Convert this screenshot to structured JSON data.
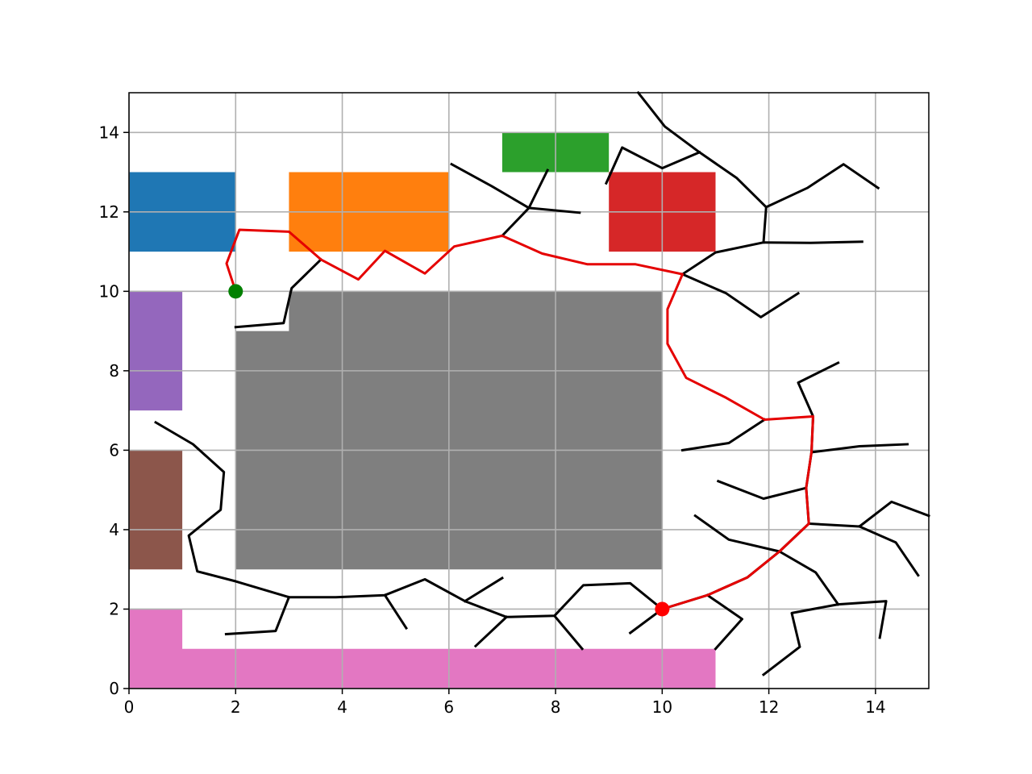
{
  "chart_data": {
    "type": "scatter",
    "title": "",
    "xlabel": "",
    "ylabel": "",
    "xlim": [
      0,
      15
    ],
    "ylim": [
      0,
      15
    ],
    "grid": true,
    "xticks": [
      0,
      2,
      4,
      6,
      8,
      10,
      12,
      14
    ],
    "yticks": [
      0,
      2,
      4,
      6,
      8,
      10,
      12,
      14
    ],
    "xtick_labels": [
      "0",
      "2",
      "4",
      "6",
      "8",
      "10",
      "12",
      "14"
    ],
    "ytick_labels": [
      "0",
      "2",
      "4",
      "6",
      "8",
      "10",
      "12",
      "14"
    ],
    "obstacles": [
      {
        "id": "blue",
        "color": "#1f77b4",
        "points": [
          [
            0,
            11
          ],
          [
            2,
            11
          ],
          [
            2,
            13
          ],
          [
            0,
            13
          ]
        ]
      },
      {
        "id": "orange",
        "color": "#ff7f0e",
        "points": [
          [
            3,
            11
          ],
          [
            6,
            11
          ],
          [
            6,
            13
          ],
          [
            3,
            13
          ]
        ]
      },
      {
        "id": "green",
        "color": "#2ca02c",
        "points": [
          [
            7,
            13
          ],
          [
            9,
            13
          ],
          [
            9,
            14
          ],
          [
            7,
            14
          ]
        ]
      },
      {
        "id": "red",
        "color": "#d62728",
        "points": [
          [
            9,
            11
          ],
          [
            11,
            11
          ],
          [
            11,
            13
          ],
          [
            9,
            13
          ]
        ]
      },
      {
        "id": "purple",
        "color": "#9467bd",
        "points": [
          [
            0,
            7
          ],
          [
            1,
            7
          ],
          [
            1,
            10
          ],
          [
            0,
            10
          ]
        ]
      },
      {
        "id": "brown",
        "color": "#8c564b",
        "points": [
          [
            0,
            3
          ],
          [
            1,
            3
          ],
          [
            1,
            6
          ],
          [
            0,
            6
          ]
        ]
      },
      {
        "id": "pink",
        "color": "#e377c2",
        "points": [
          [
            0,
            0
          ],
          [
            11,
            0
          ],
          [
            11,
            1
          ],
          [
            1,
            1
          ],
          [
            1,
            2
          ],
          [
            0,
            2
          ]
        ]
      },
      {
        "id": "gray",
        "color": "#7f7f7f",
        "points": [
          [
            2,
            3
          ],
          [
            10,
            3
          ],
          [
            10,
            10
          ],
          [
            3,
            10
          ],
          [
            3,
            9
          ],
          [
            2,
            9
          ]
        ]
      }
    ],
    "tree_color": "#000000",
    "tree_edges": [
      [
        [
          0.5,
          6.7
        ],
        [
          1.2,
          6.15
        ],
        [
          1.78,
          5.45
        ],
        [
          1.72,
          4.5
        ],
        [
          1.12,
          3.85
        ],
        [
          1.28,
          2.95
        ],
        [
          2.0,
          2.7
        ],
        [
          3.0,
          2.3
        ],
        [
          3.88,
          2.3
        ],
        [
          4.8,
          2.35
        ],
        [
          5.55,
          2.75
        ],
        [
          6.3,
          2.2
        ],
        [
          7.08,
          1.8
        ],
        [
          7.98,
          1.83
        ],
        [
          8.52,
          2.6
        ],
        [
          9.4,
          2.65
        ],
        [
          10.0,
          2.0
        ],
        [
          10.85,
          2.35
        ],
        [
          11.6,
          2.8
        ],
        [
          12.2,
          3.45
        ],
        [
          12.75,
          4.15
        ],
        [
          12.7,
          5.05
        ],
        [
          12.8,
          5.95
        ],
        [
          12.83,
          6.85
        ],
        [
          12.55,
          7.7
        ],
        [
          13.3,
          8.2
        ]
      ],
      [
        [
          1.82,
          1.37
        ],
        [
          2.75,
          1.45
        ],
        [
          3.0,
          2.3
        ]
      ],
      [
        [
          4.8,
          2.35
        ],
        [
          5.2,
          1.52
        ]
      ],
      [
        [
          6.3,
          2.2
        ],
        [
          7.0,
          2.78
        ]
      ],
      [
        [
          6.5,
          1.07
        ],
        [
          7.08,
          1.8
        ]
      ],
      [
        [
          7.98,
          1.83
        ],
        [
          8.5,
          1.0
        ]
      ],
      [
        [
          9.4,
          1.4
        ],
        [
          10.0,
          2.0
        ]
      ],
      [
        [
          10.85,
          2.35
        ],
        [
          11.5,
          1.75
        ],
        [
          11.0,
          1.0
        ]
      ],
      [
        [
          11.9,
          0.35
        ],
        [
          12.58,
          1.05
        ],
        [
          12.43,
          1.9
        ],
        [
          13.3,
          2.12
        ],
        [
          14.2,
          2.2
        ],
        [
          14.08,
          1.28
        ]
      ],
      [
        [
          13.3,
          2.12
        ],
        [
          12.88,
          2.92
        ],
        [
          12.2,
          3.45
        ],
        [
          11.25,
          3.75
        ],
        [
          10.62,
          4.35
        ]
      ],
      [
        [
          12.75,
          4.15
        ],
        [
          13.7,
          4.08
        ],
        [
          14.3,
          4.7
        ],
        [
          15.0,
          4.35
        ]
      ],
      [
        [
          13.7,
          4.08
        ],
        [
          14.38,
          3.68
        ],
        [
          14.8,
          2.85
        ]
      ],
      [
        [
          11.05,
          5.22
        ],
        [
          11.9,
          4.78
        ],
        [
          12.7,
          5.05
        ]
      ],
      [
        [
          12.8,
          5.95
        ],
        [
          13.7,
          6.1
        ],
        [
          14.6,
          6.15
        ]
      ],
      [
        [
          10.38,
          6.0
        ],
        [
          11.25,
          6.18
        ],
        [
          11.92,
          6.77
        ]
      ],
      [
        [
          10.38,
          10.43
        ],
        [
          11.0,
          10.98
        ],
        [
          11.9,
          11.23
        ],
        [
          12.78,
          11.22
        ],
        [
          13.75,
          11.25
        ]
      ],
      [
        [
          10.38,
          10.43
        ],
        [
          11.2,
          9.95
        ],
        [
          11.85,
          9.35
        ],
        [
          12.55,
          9.95
        ]
      ],
      [
        [
          11.9,
          11.23
        ],
        [
          11.95,
          12.12
        ],
        [
          12.72,
          12.6
        ],
        [
          13.4,
          13.2
        ],
        [
          14.05,
          12.6
        ]
      ],
      [
        [
          11.95,
          12.12
        ],
        [
          11.4,
          12.85
        ],
        [
          10.7,
          13.5
        ],
        [
          10.05,
          14.15
        ],
        [
          9.55,
          15.0
        ]
      ],
      [
        [
          10.7,
          13.5
        ],
        [
          10.0,
          13.1
        ],
        [
          9.25,
          13.62
        ],
        [
          8.95,
          12.72
        ]
      ],
      [
        [
          7.0,
          11.4
        ],
        [
          7.5,
          12.1
        ],
        [
          7.85,
          13.05
        ]
      ],
      [
        [
          6.05,
          13.2
        ],
        [
          6.8,
          12.65
        ],
        [
          7.5,
          12.1
        ],
        [
          8.45,
          11.98
        ]
      ],
      [
        [
          2.0,
          9.1
        ],
        [
          2.9,
          9.2
        ],
        [
          3.05,
          10.08
        ],
        [
          3.6,
          10.8
        ]
      ]
    ],
    "path_color": "#e50000",
    "path": [
      [
        2.0,
        10.0
      ],
      [
        1.83,
        10.7
      ],
      [
        2.07,
        11.55
      ],
      [
        3.0,
        11.5
      ],
      [
        3.6,
        10.8
      ],
      [
        4.3,
        10.3
      ],
      [
        4.8,
        11.02
      ],
      [
        5.55,
        10.45
      ],
      [
        6.1,
        11.13
      ],
      [
        7.0,
        11.4
      ],
      [
        7.75,
        10.95
      ],
      [
        8.6,
        10.68
      ],
      [
        9.5,
        10.68
      ],
      [
        10.38,
        10.43
      ],
      [
        10.1,
        9.55
      ],
      [
        10.1,
        8.68
      ],
      [
        10.45,
        7.82
      ],
      [
        11.2,
        7.32
      ],
      [
        11.92,
        6.77
      ],
      [
        12.83,
        6.85
      ],
      [
        12.8,
        5.95
      ],
      [
        12.7,
        5.05
      ],
      [
        12.75,
        4.15
      ],
      [
        12.2,
        3.45
      ],
      [
        11.6,
        2.8
      ],
      [
        10.85,
        2.35
      ],
      [
        10.0,
        2.0
      ]
    ],
    "start": {
      "x": 2,
      "y": 10,
      "color": "#008000"
    },
    "goal": {
      "x": 10,
      "y": 2,
      "color": "#ff0000"
    }
  }
}
